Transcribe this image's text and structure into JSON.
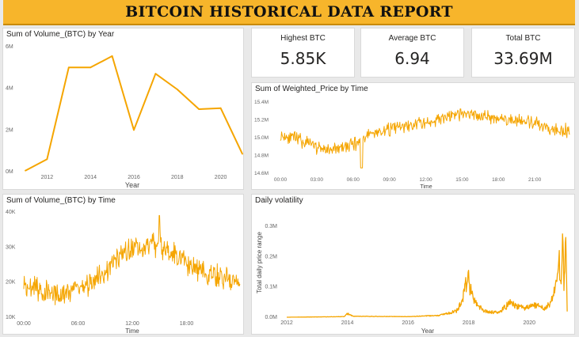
{
  "header": {
    "title": "BITCOIN HISTORICAL DATA REPORT"
  },
  "kpis": [
    {
      "label": "Highest BTC",
      "value": "5.85K"
    },
    {
      "label": "Average BTC",
      "value": "6.94"
    },
    {
      "label": "Total BTC",
      "value": "33.69M"
    }
  ],
  "colors": {
    "series": "#f5a500",
    "banner": "#f7b52b",
    "text": "#252423",
    "axis": "#666666"
  },
  "chart_data": [
    {
      "id": "volume_by_year",
      "type": "line",
      "title": "Sum of Volume_(BTC) by Year",
      "xlabel": "Year",
      "ylabel": "",
      "x": [
        2011,
        2012,
        2013,
        2014,
        2015,
        2016,
        2017,
        2018,
        2019,
        2020,
        2021
      ],
      "values": [
        0.05,
        0.6,
        5.0,
        5.0,
        5.55,
        2.0,
        4.7,
        3.95,
        3.0,
        3.05,
        0.85
      ],
      "value_units": "millions",
      "xticks": [
        "2012",
        "2014",
        "2016",
        "2018",
        "2020"
      ],
      "yticks": [
        "0M",
        "2M",
        "4M",
        "6M"
      ],
      "ylim": [
        0,
        6
      ],
      "grid": false
    },
    {
      "id": "weighted_price_by_time",
      "type": "line",
      "title": "Sum of Weighted_Price by Time",
      "xlabel": "Time",
      "ylabel": "",
      "xticks": [
        "00:00",
        "03:00",
        "06:00",
        "09:00",
        "12:00",
        "15:00",
        "18:00",
        "21:00"
      ],
      "yticks": [
        "14.6M",
        "14.8M",
        "15.0M",
        "15.2M",
        "15.4M"
      ],
      "ylim": [
        14.6,
        15.4
      ],
      "value_units": "millions",
      "trend_x_hours": [
        0,
        1,
        2,
        3,
        4,
        5,
        6,
        7,
        8,
        9,
        10,
        11,
        12,
        13,
        14,
        15,
        16,
        17,
        18,
        19,
        20,
        21,
        22,
        23.9
      ],
      "trend_values": [
        15.03,
        15.0,
        14.95,
        14.9,
        14.86,
        14.88,
        14.92,
        15.02,
        15.06,
        15.1,
        15.12,
        15.14,
        15.17,
        15.2,
        15.24,
        15.26,
        15.26,
        15.24,
        15.22,
        15.2,
        15.18,
        15.15,
        15.12,
        15.07
      ],
      "min_point": {
        "hour": 6.7,
        "value": 14.66
      },
      "grid": false
    },
    {
      "id": "volume_by_time",
      "type": "line",
      "title": "Sum of Volume_(BTC) by Time",
      "xlabel": "Time",
      "ylabel": "",
      "xticks": [
        "00:00",
        "06:00",
        "12:00",
        "18:00"
      ],
      "yticks": [
        "10K",
        "20K",
        "30K",
        "40K"
      ],
      "ylim": [
        10,
        40
      ],
      "value_units": "thousands",
      "trend_x_hours": [
        0,
        1,
        2,
        3,
        4,
        5,
        6,
        7,
        8,
        9,
        10,
        11,
        12,
        13,
        14,
        15,
        16,
        17,
        18,
        19,
        20,
        21,
        22,
        23.9
      ],
      "trend_values": [
        20,
        18.5,
        17.5,
        17,
        17,
        17.3,
        18,
        19.5,
        21.5,
        23.5,
        26,
        28,
        29.5,
        30.5,
        31,
        30.5,
        29.5,
        27,
        25,
        24,
        23,
        22,
        21,
        20
      ],
      "max_point": {
        "hour": 15,
        "value": 39
      },
      "grid": false
    },
    {
      "id": "daily_volatility",
      "type": "line",
      "title": "Daily volatility",
      "xlabel": "Year",
      "ylabel": "Total daily price range",
      "xticks": [
        "2012",
        "2014",
        "2016",
        "2018",
        "2020"
      ],
      "yticks": [
        "0.0M",
        "0.1M",
        "0.2M",
        "0.3M"
      ],
      "ylim": [
        0,
        0.3
      ],
      "value_units": "millions",
      "x": [
        2012.0,
        2013.9,
        2014.0,
        2014.2,
        2016.0,
        2017.0,
        2017.6,
        2017.8,
        2017.9,
        2017.97,
        2018.05,
        2018.2,
        2018.5,
        2019.0,
        2019.4,
        2019.6,
        2019.9,
        2020.2,
        2020.5,
        2020.8,
        2020.95,
        2021.05,
        2021.1,
        2021.15,
        2021.2,
        2021.25
      ],
      "values": [
        0.0,
        0.002,
        0.012,
        0.003,
        0.002,
        0.006,
        0.02,
        0.06,
        0.1,
        0.145,
        0.09,
        0.05,
        0.02,
        0.015,
        0.05,
        0.035,
        0.03,
        0.04,
        0.03,
        0.06,
        0.2,
        0.14,
        0.31,
        0.09,
        0.29,
        0.02
      ],
      "grid": false
    }
  ]
}
